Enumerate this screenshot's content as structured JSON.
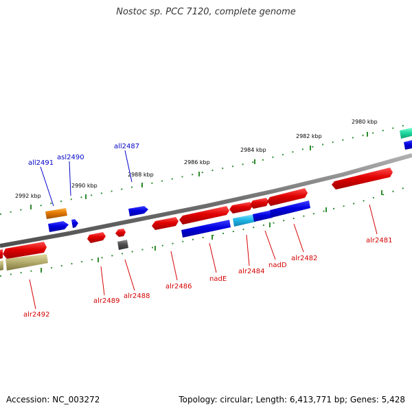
{
  "title": "Nostoc sp. PCC 7120, complete genome",
  "footer": {
    "accession": "Accession: NC_003272",
    "summary": "Topology: circular; Length: 6,413,771 bp; Genes: 5,428"
  },
  "colors": {
    "background": "#ffffff",
    "backbone": "#808080",
    "tick": "#2e8b2e",
    "gene_forward_label": "#d40000",
    "gene_reverse_label": "#0000c8",
    "red": "#e00000",
    "blue": "#0000e0",
    "orange": "#e07800",
    "cyan": "#20b8e8",
    "gray": "#505050",
    "khaki": "#b8b070",
    "teal": "#20d8a0"
  },
  "ruler": {
    "ticks": [
      {
        "label": "2992 kbp"
      },
      {
        "label": "2990 kbp"
      },
      {
        "label": "2988 kbp"
      },
      {
        "label": "2986 kbp"
      },
      {
        "label": "2984 kbp"
      },
      {
        "label": "2982 kbp"
      },
      {
        "label": "2980 kbp"
      }
    ]
  },
  "genes": [
    {
      "name": "all2491",
      "strand": "reverse"
    },
    {
      "name": "asl2490",
      "strand": "reverse"
    },
    {
      "name": "all2487",
      "strand": "reverse"
    },
    {
      "name": "alr2492",
      "strand": "forward"
    },
    {
      "name": "alr2489",
      "strand": "forward"
    },
    {
      "name": "alr2488",
      "strand": "forward"
    },
    {
      "name": "alr2486",
      "strand": "forward"
    },
    {
      "name": "nadE",
      "strand": "forward"
    },
    {
      "name": "alr2484",
      "strand": "forward"
    },
    {
      "name": "nadD",
      "strand": "forward"
    },
    {
      "name": "alr2482",
      "strand": "forward"
    },
    {
      "name": "alr2481",
      "strand": "forward"
    }
  ]
}
